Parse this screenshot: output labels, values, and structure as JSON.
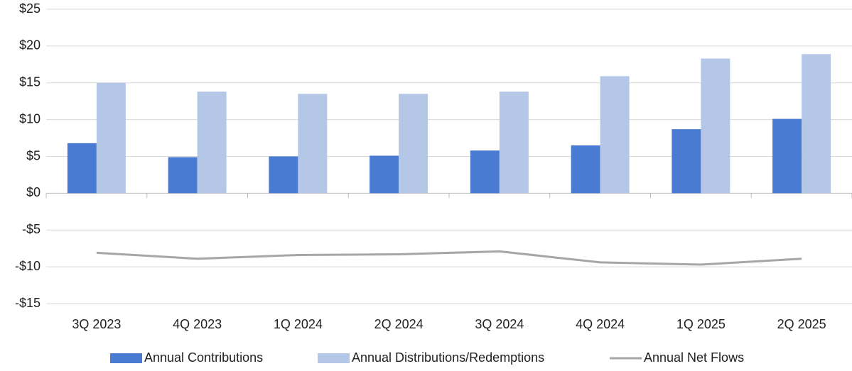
{
  "chart_data": {
    "type": "bar",
    "categories": [
      "3Q 2023",
      "4Q 2023",
      "1Q 2024",
      "2Q 2024",
      "3Q 2024",
      "4Q 2024",
      "1Q 2025",
      "2Q 2025"
    ],
    "series": [
      {
        "name": "Annual Contributions",
        "type": "bar",
        "color": "#4a7bd3",
        "values": [
          6.8,
          4.9,
          5.0,
          5.1,
          5.8,
          6.5,
          8.7,
          10.1
        ]
      },
      {
        "name": "Annual Distributions/Redemptions",
        "type": "bar",
        "color": "#b4c7e7",
        "values": [
          15.0,
          13.8,
          13.5,
          13.5,
          13.8,
          15.9,
          18.3,
          18.9
        ]
      },
      {
        "name": "Annual Net Flows",
        "type": "line",
        "color": "#a6a6a6",
        "values": [
          -8.1,
          -8.9,
          -8.4,
          -8.3,
          -7.9,
          -9.4,
          -9.7,
          -8.9
        ]
      }
    ],
    "ylim": [
      -15,
      25
    ],
    "yticks": [
      {
        "value": -15,
        "label": "-$15"
      },
      {
        "value": -10,
        "label": "-$10"
      },
      {
        "value": -5,
        "label": "-$5"
      },
      {
        "value": 0,
        "label": "$0"
      },
      {
        "value": 5,
        "label": "$5"
      },
      {
        "value": 10,
        "label": "$10"
      },
      {
        "value": 15,
        "label": "$15"
      },
      {
        "value": 20,
        "label": "$20"
      },
      {
        "value": 25,
        "label": "$25"
      }
    ],
    "grid": true,
    "legend": "bottom"
  }
}
